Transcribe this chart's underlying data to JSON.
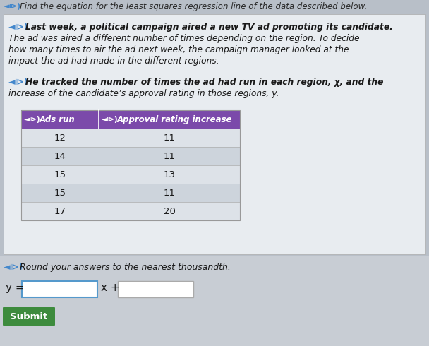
{
  "title": "Find the equation for the least squares regression line of the data described below.",
  "para1_icon": "◄⧐)",
  "para1_line1": "◄⧐) Last week, a political campaign aired a new TV ad promoting its candidate.",
  "para1_line2": "The ad was aired a different number of times depending on the region. To decide",
  "para1_line3": "how many times to air the ad next week, the campaign manager looked at the",
  "para1_line4": "impact the ad had made in the different regions.",
  "para2_line1": "◄⧐) He tracked the number of times the ad had run in each region, x, and the",
  "para2_line2": "increase of the candidate’s approval rating in those regions, y.",
  "col1_header": "Ads run",
  "col2_header": "Approval rating increase",
  "table_data": [
    [
      12,
      11
    ],
    [
      14,
      11
    ],
    [
      15,
      13
    ],
    [
      15,
      11
    ],
    [
      17,
      20
    ]
  ],
  "round_text": "◄⧐) Round your answers to the nearest thousandth.",
  "eq_label": "y =",
  "eq_mid": "x +",
  "submit_label": "Submit",
  "bg_outer": "#b8bfc8",
  "bg_panel": "#e8ecf0",
  "bg_below": "#c8cdd4",
  "header_color": "#7b4aaa",
  "header_text_color": "#ffffff",
  "title_color": "#2a2a2a",
  "body_text_color": "#1a1a1a",
  "submit_color": "#3d8b3d",
  "row_even_color": "#dde2e8",
  "row_odd_color": "#cdd4dc",
  "speaker_color": "#4488cc"
}
